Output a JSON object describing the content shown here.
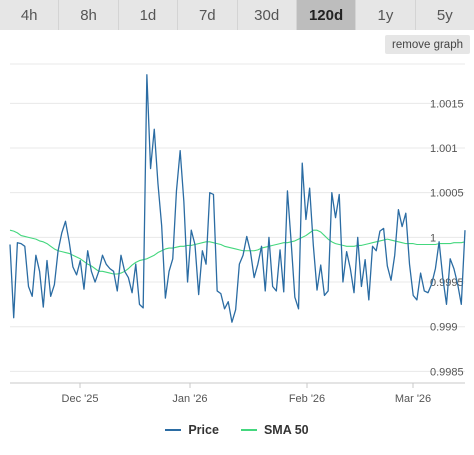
{
  "tabs": [
    {
      "label": "4h",
      "active": false
    },
    {
      "label": "8h",
      "active": false
    },
    {
      "label": "1d",
      "active": false
    },
    {
      "label": "7d",
      "active": false
    },
    {
      "label": "30d",
      "active": false
    },
    {
      "label": "120d",
      "active": true
    },
    {
      "label": "1y",
      "active": false
    },
    {
      "label": "5y",
      "active": false
    }
  ],
  "remove_graph_label": "remove graph",
  "chart_data": {
    "type": "line",
    "x_ticks": [
      "Dec '25",
      "Jan '26",
      "Feb '26",
      "Mar '26"
    ],
    "y_ticks": [
      "0.9985",
      "0.999",
      "0.9995",
      "1",
      "1.0005",
      "1.001",
      "1.0015"
    ],
    "ylim": [
      0.99837,
      1.00194
    ],
    "grid": true,
    "legend_position": "bottom",
    "series": [
      {
        "name": "Price",
        "color": "#2b6ca3",
        "values": [
          0.99992,
          0.9991,
          0.99994,
          0.99993,
          0.9999,
          0.99945,
          0.99934,
          0.9998,
          0.99962,
          0.99922,
          0.99974,
          0.99934,
          0.99947,
          0.99985,
          1.00005,
          1.00018,
          0.99995,
          0.99967,
          0.99958,
          0.99974,
          0.99942,
          0.99985,
          0.99962,
          0.9995,
          0.99962,
          0.9998,
          0.9997,
          0.99965,
          0.99962,
          0.9994,
          0.9998,
          0.99962,
          0.99955,
          0.99938,
          0.9997,
          0.99925,
          0.99921,
          1.00182,
          1.00077,
          1.00121,
          1.0006,
          1.00013,
          0.99932,
          0.99962,
          0.99976,
          1.00052,
          1.00097,
          1.0004,
          0.9995,
          1.00008,
          0.99992,
          0.99936,
          0.99985,
          0.9997,
          1.0005,
          1.00048,
          0.9994,
          0.99937,
          0.9992,
          0.99928,
          0.99905,
          0.99919,
          0.9997,
          0.9998,
          1.00001,
          0.99984,
          0.99955,
          0.9997,
          0.9999,
          0.9994,
          1.0,
          0.99945,
          0.9994,
          0.99986,
          0.99939,
          1.00052,
          0.99995,
          0.99933,
          0.9992,
          1.00083,
          1.0002,
          1.00055,
          0.99991,
          0.99941,
          0.99969,
          0.99935,
          0.9994,
          1.0005,
          1.00022,
          1.00048,
          0.9995,
          0.99984,
          0.99965,
          0.99938,
          1.0,
          0.99945,
          0.99975,
          0.9993,
          0.9999,
          0.99985,
          1.00007,
          1.0001,
          0.99968,
          0.99952,
          0.9998,
          1.00031,
          1.00012,
          1.00027,
          0.9997,
          0.99935,
          0.9993,
          0.9996,
          0.9994,
          0.99938,
          0.99948,
          0.99965,
          0.99995,
          0.99955,
          0.99925,
          0.99976,
          0.99965,
          0.99948,
          0.99925,
          1.00008
        ]
      },
      {
        "name": "SMA 50",
        "color": "#44d77e",
        "values": [
          1.00008,
          1.00007,
          1.00005,
          1.00002,
          1.00001,
          1.0,
          0.99999,
          0.99998,
          0.99996,
          0.99995,
          0.99993,
          0.9999,
          0.99987,
          0.99985,
          0.99984,
          0.99983,
          0.99982,
          0.9998,
          0.99978,
          0.99976,
          0.99973,
          0.9997,
          0.99968,
          0.99965,
          0.99962,
          0.99962,
          0.99961,
          0.9996,
          0.99959,
          0.99959,
          0.9996,
          0.99962,
          0.99965,
          0.99969,
          0.99972,
          0.99974,
          0.99975,
          0.99976,
          0.99978,
          0.9998,
          0.99983,
          0.99985,
          0.99987,
          0.99988,
          0.99988,
          0.99989,
          0.9999,
          0.9999,
          0.99991,
          0.99991,
          0.99992,
          0.99993,
          0.99994,
          0.99995,
          0.99995,
          0.99994,
          0.99993,
          0.99992,
          0.9999,
          0.99989,
          0.99988,
          0.99987,
          0.99986,
          0.99985,
          0.99985,
          0.99985,
          0.99985,
          0.99986,
          0.99988,
          0.99989,
          0.9999,
          0.99991,
          0.99992,
          0.99993,
          0.99994,
          0.99994,
          0.99995,
          0.99996,
          0.99998,
          1.0,
          1.00002,
          1.00005,
          1.00008,
          1.00008,
          1.00006,
          1.00002,
          0.99998,
          0.99995,
          0.99993,
          0.99992,
          0.99991,
          0.9999,
          0.9999,
          0.9999,
          0.99991,
          0.99991,
          0.99992,
          0.99993,
          0.99994,
          0.99995,
          0.99996,
          0.99997,
          0.99998,
          0.99997,
          0.99996,
          0.99995,
          0.99994,
          0.99993,
          0.99993,
          0.99993,
          0.99992,
          0.99992,
          0.99992,
          0.99992,
          0.99992,
          0.99992,
          0.99993,
          0.99993,
          0.99993,
          0.99993,
          0.99994,
          0.99994,
          0.99994,
          0.99995
        ]
      }
    ]
  }
}
